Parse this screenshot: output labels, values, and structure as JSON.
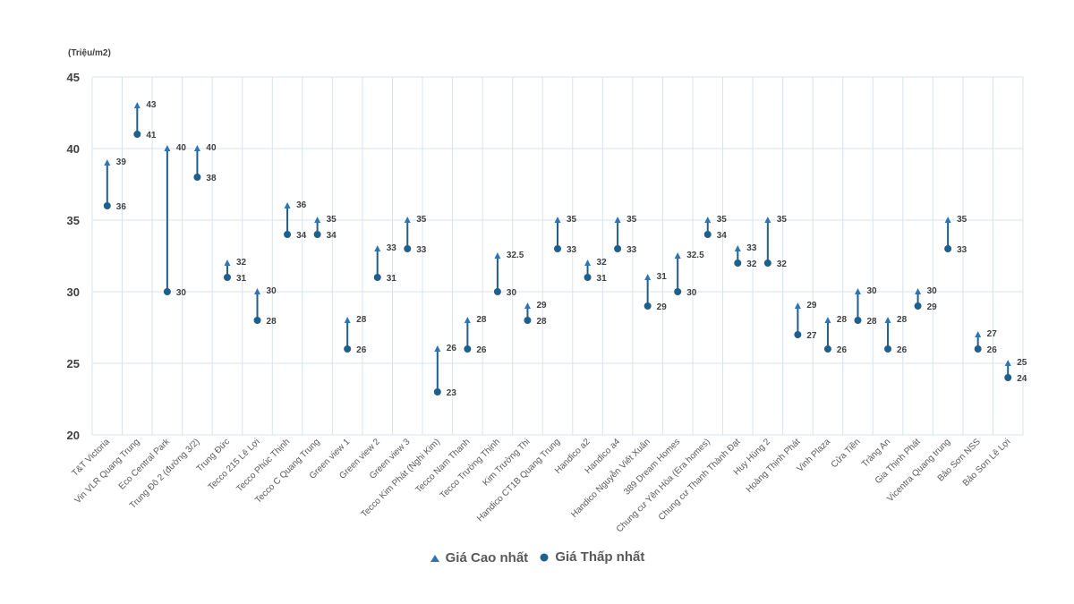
{
  "chart_data": {
    "type": "range",
    "unit_label": "(Triệu/m2)",
    "ylim": [
      20,
      45
    ],
    "yticks": [
      20,
      25,
      30,
      35,
      40,
      45
    ],
    "grid": true,
    "legend_position": "bottom-center",
    "colors": {
      "marker": "#1f5f8b",
      "high_marker": "#2e75b6",
      "grid": "#d6e4f0",
      "text": "#404040"
    },
    "categories": [
      "T&T Victoria",
      "Vin VLR Quang Trung",
      "Eco Central Park",
      "Trung Đô 2 (đường 3/2)",
      "Trung Đức",
      "Tecco 215 Lê Lợi",
      "Tecco Phúc Thịnh",
      "Tecco C Quang Trung",
      "Green view 1",
      "Green view 2",
      "Green view 3",
      "Tecco Kim Phát (Nghi Kim)",
      "Tecco Nam Thanh",
      "Tecco Trường Thịnh",
      "Kim Trường Thi",
      "Handico CT1B Quang Trung",
      "Handico a2",
      "Handico a4",
      "Handico Nguyễn Viết Xuân",
      "389 Dream Homes",
      "Chung cư Yên Hòa (Era homes)",
      "Chung cư Thanh Thành Đạt",
      "Huy Hùng 2",
      "Hoàng Thịnh Phát",
      "Vinh Plaza",
      "Cửa Tiền",
      "Tràng An",
      "Gia Thịnh Phát",
      "Vicentra Quang trung",
      "Bảo Sơn NSS",
      "Bảo Sơn Lê Lợi"
    ],
    "series": [
      {
        "name": "Giá Cao nhất",
        "marker": "triangle",
        "values": [
          39,
          43,
          40,
          40,
          32,
          30,
          36,
          35,
          28,
          33,
          35,
          26,
          28,
          32.5,
          29,
          35,
          32,
          35,
          31,
          32.5,
          35,
          33,
          35,
          29,
          28,
          30,
          28,
          30,
          35,
          27,
          25
        ]
      },
      {
        "name": "Giá Thấp nhất",
        "marker": "circle",
        "values": [
          36,
          41,
          30,
          38,
          31,
          28,
          34,
          34,
          26,
          31,
          33,
          23,
          26,
          30,
          28,
          33,
          31,
          33,
          29,
          30,
          34,
          32,
          32,
          27,
          26,
          28,
          26,
          29,
          33,
          26,
          24
        ]
      }
    ]
  }
}
